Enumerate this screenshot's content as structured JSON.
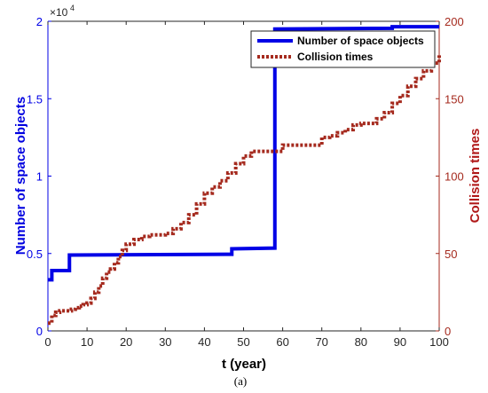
{
  "chart_data": {
    "type": "line",
    "xlabel": "t (year)",
    "ylabel_left": "Number of space objects",
    "ylabel_right": "Collision times",
    "caption": "(a)",
    "left_axis_multiplier": "×10^4",
    "left_axis_multiplier_base": "×10",
    "left_axis_multiplier_exp": "4",
    "xlim": [
      0,
      100
    ],
    "ylim_left": [
      0,
      20000
    ],
    "ylim_right": [
      0,
      200
    ],
    "x_ticks": [
      0,
      10,
      20,
      30,
      40,
      50,
      60,
      70,
      80,
      90,
      100
    ],
    "x_tick_labels": [
      "0",
      "10",
      "20",
      "30",
      "40",
      "50",
      "60",
      "70",
      "80",
      "90",
      "100"
    ],
    "y_left_ticks": [
      0,
      5000,
      10000,
      15000,
      20000
    ],
    "y_left_tick_labels": [
      "0",
      "0.5",
      "1",
      "1.5",
      "2"
    ],
    "y_right_ticks": [
      0,
      50,
      100,
      150,
      200
    ],
    "y_right_tick_labels": [
      "0",
      "50",
      "100",
      "150",
      "200"
    ],
    "grid": false,
    "legend_position": "top-right",
    "series": [
      {
        "name": "Number of space objects",
        "axis": "left",
        "color": "#0000e6",
        "style": "solid",
        "x": [
          0,
          1,
          1,
          5.5,
          5.5,
          47,
          47,
          58,
          58,
          88,
          88,
          100
        ],
        "y": [
          3300,
          3300,
          3900,
          3900,
          4900,
          4950,
          5300,
          5350,
          19500,
          19550,
          19650,
          19650
        ]
      },
      {
        "name": "Collision times",
        "axis": "right",
        "color": "#a52a1e",
        "style": "dotted",
        "x": [
          0,
          1,
          2,
          3,
          4,
          5,
          6,
          7,
          8,
          9,
          10,
          11,
          12,
          13,
          14,
          15,
          16,
          17,
          18,
          19,
          20,
          22,
          24,
          26,
          28,
          30,
          32,
          34,
          36,
          38,
          40,
          42,
          44,
          46,
          48,
          50,
          52,
          54,
          56,
          58,
          60,
          62,
          64,
          66,
          68,
          70,
          72,
          74,
          76,
          78,
          80,
          82,
          84,
          86,
          88,
          90,
          92,
          94,
          96,
          98,
          100
        ],
        "y": [
          5,
          10,
          12,
          13,
          13,
          13,
          14,
          15,
          16,
          17,
          18,
          21,
          25,
          29,
          34,
          38,
          40,
          44,
          48,
          52,
          56,
          59,
          61,
          62,
          62,
          63,
          66,
          70,
          75,
          82,
          89,
          93,
          97,
          102,
          108,
          113,
          116,
          116,
          116,
          116,
          120,
          120,
          120,
          120,
          120,
          125,
          126,
          128,
          130,
          133,
          134,
          134,
          137,
          141,
          147,
          152,
          158,
          163,
          168,
          173,
          178
        ]
      }
    ]
  }
}
